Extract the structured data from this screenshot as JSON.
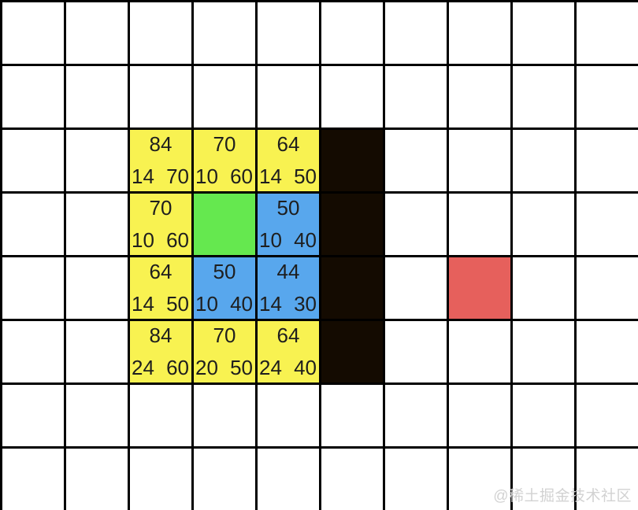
{
  "diagram_title": "astar-pathfinding-grid",
  "grid": {
    "cols": 10,
    "rows": 8,
    "cells": [
      {
        "row": 2,
        "col": 2,
        "kind": "yellow",
        "f": "84",
        "g": "14",
        "h": "70"
      },
      {
        "row": 2,
        "col": 3,
        "kind": "yellow",
        "f": "70",
        "g": "10",
        "h": "60"
      },
      {
        "row": 2,
        "col": 4,
        "kind": "yellow",
        "f": "64",
        "g": "14",
        "h": "50"
      },
      {
        "row": 2,
        "col": 5,
        "kind": "wall"
      },
      {
        "row": 3,
        "col": 2,
        "kind": "yellow",
        "f": "70",
        "g": "10",
        "h": "60"
      },
      {
        "row": 3,
        "col": 3,
        "kind": "start"
      },
      {
        "row": 3,
        "col": 4,
        "kind": "blue",
        "f": "50",
        "g": "10",
        "h": "40"
      },
      {
        "row": 3,
        "col": 5,
        "kind": "wall"
      },
      {
        "row": 4,
        "col": 2,
        "kind": "yellow",
        "f": "64",
        "g": "14",
        "h": "50"
      },
      {
        "row": 4,
        "col": 3,
        "kind": "blue",
        "f": "50",
        "g": "10",
        "h": "40"
      },
      {
        "row": 4,
        "col": 4,
        "kind": "blue",
        "f": "44",
        "g": "14",
        "h": "30"
      },
      {
        "row": 4,
        "col": 5,
        "kind": "wall"
      },
      {
        "row": 4,
        "col": 7,
        "kind": "goal"
      },
      {
        "row": 5,
        "col": 2,
        "kind": "yellow",
        "f": "84",
        "g": "24",
        "h": "60"
      },
      {
        "row": 5,
        "col": 3,
        "kind": "yellow",
        "f": "70",
        "g": "20",
        "h": "50"
      },
      {
        "row": 5,
        "col": 4,
        "kind": "yellow",
        "f": "64",
        "g": "24",
        "h": "40"
      },
      {
        "row": 5,
        "col": 5,
        "kind": "wall"
      }
    ]
  },
  "colors": {
    "yellow": "#f8f251",
    "blue": "#58a7ed",
    "green": "#65e84f",
    "red": "#e6605c",
    "wall": "#140b01",
    "line": "#000000",
    "text": "#1e1e1e"
  },
  "watermark": {
    "text": "@稀土掘金技术社区"
  }
}
